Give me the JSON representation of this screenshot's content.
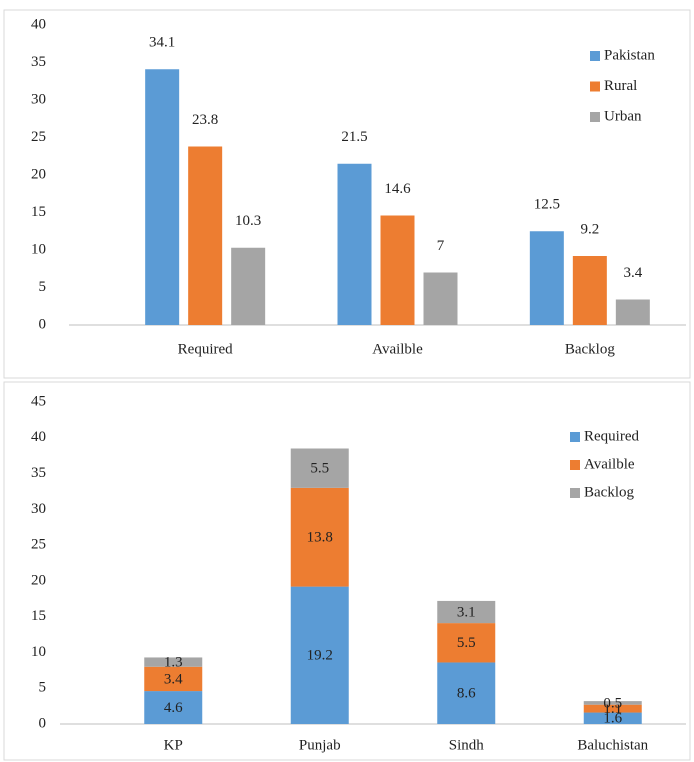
{
  "chart_data": [
    {
      "type": "bar",
      "categories": [
        "Required",
        "Availble",
        "Backlog"
      ],
      "series": [
        {
          "name": "Pakistan",
          "color": "#5b9bd5",
          "values": [
            34.1,
            21.5,
            12.5
          ]
        },
        {
          "name": "Rural",
          "color": "#ed7d31",
          "values": [
            23.8,
            14.6,
            9.2
          ]
        },
        {
          "name": "Urban",
          "color": "#a5a5a5",
          "values": [
            10.3,
            7,
            3.4
          ]
        }
      ],
      "ylim": [
        0,
        40
      ],
      "yticks": [
        0,
        5,
        10,
        15,
        20,
        25,
        30,
        35,
        40
      ],
      "legend": "upper right",
      "grid": false
    },
    {
      "type": "stacked_bar",
      "categories": [
        "KP",
        "Punjab",
        "Sindh",
        "Baluchistan"
      ],
      "series": [
        {
          "name": "Required",
          "color": "#5b9bd5",
          "values": [
            4.6,
            19.2,
            8.6,
            1.6
          ]
        },
        {
          "name": "Availble",
          "color": "#ed7d31",
          "values": [
            3.4,
            13.8,
            5.5,
            1.1
          ]
        },
        {
          "name": "Backlog",
          "color": "#a5a5a5",
          "values": [
            1.3,
            5.5,
            3.1,
            0.5
          ]
        }
      ],
      "ylim": [
        0,
        45
      ],
      "yticks": [
        0,
        5,
        10,
        15,
        20,
        25,
        30,
        35,
        40,
        45
      ],
      "legend": "upper right",
      "grid": false
    }
  ]
}
